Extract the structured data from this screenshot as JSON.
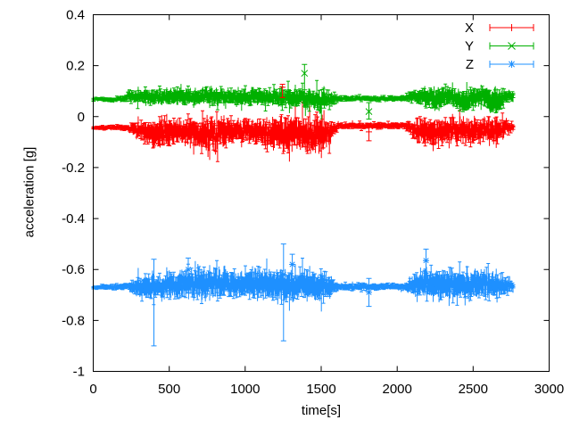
{
  "window": {
    "background": "#ffffff"
  },
  "chart_data": {
    "type": "scatter",
    "style": "points-with-yerrorbars",
    "title": "",
    "xlabel": "time[s]",
    "ylabel": "acceleration [g]",
    "xlim": [
      0,
      3000
    ],
    "ylim": [
      -1,
      0.4
    ],
    "xticks": [
      0,
      500,
      1000,
      1500,
      2000,
      2500,
      3000
    ],
    "xtick_labels": [
      "0",
      "500",
      "1000",
      "1500",
      "2000",
      "2500",
      "3000"
    ],
    "yticks": [
      -1,
      -0.8,
      -0.6,
      -0.4,
      -0.2,
      0,
      0.2,
      0.4
    ],
    "ytick_labels": [
      "-1",
      "-0.8",
      "-0.6",
      "-0.4",
      "-0.2",
      "0",
      "0.2",
      "0.4"
    ],
    "grid": false,
    "frame_color": "#000000",
    "text_color": "#000000",
    "legend": {
      "position": "top-right-inside",
      "entries": [
        "X",
        "Y",
        "Z"
      ]
    },
    "t_end": 2765,
    "series": [
      {
        "name": "X",
        "color": "#ff0000",
        "marker": "plus",
        "envelope": [
          [
            0,
            -0.043,
            0.009
          ],
          [
            140,
            -0.043,
            0.011
          ],
          [
            230,
            -0.045,
            0.012
          ],
          [
            280,
            -0.05,
            0.03
          ],
          [
            350,
            -0.06,
            0.05
          ],
          [
            450,
            -0.065,
            0.062
          ],
          [
            550,
            -0.055,
            0.05
          ],
          [
            650,
            -0.06,
            0.058
          ],
          [
            750,
            -0.07,
            0.075
          ],
          [
            850,
            -0.065,
            0.06
          ],
          [
            950,
            -0.055,
            0.048
          ],
          [
            1050,
            -0.06,
            0.055
          ],
          [
            1150,
            -0.065,
            0.06
          ],
          [
            1250,
            -0.075,
            0.085
          ],
          [
            1350,
            -0.065,
            0.07
          ],
          [
            1420,
            -0.07,
            0.075
          ],
          [
            1500,
            -0.075,
            0.08
          ],
          [
            1560,
            -0.055,
            0.045
          ],
          [
            1615,
            -0.036,
            0.013
          ],
          [
            2045,
            -0.036,
            0.013
          ],
          [
            2095,
            -0.045,
            0.03
          ],
          [
            2150,
            -0.06,
            0.055
          ],
          [
            2250,
            -0.065,
            0.06
          ],
          [
            2350,
            -0.055,
            0.05
          ],
          [
            2450,
            -0.06,
            0.058
          ],
          [
            2550,
            -0.05,
            0.05
          ],
          [
            2650,
            -0.055,
            0.055
          ],
          [
            2720,
            -0.045,
            0.035
          ],
          [
            2765,
            -0.04,
            0.016
          ]
        ]
      },
      {
        "name": "Y",
        "color": "#00b000",
        "marker": "cross",
        "envelope": [
          [
            0,
            0.068,
            0.008
          ],
          [
            140,
            0.068,
            0.01
          ],
          [
            195,
            0.07,
            0.012
          ],
          [
            230,
            0.08,
            0.025
          ],
          [
            350,
            0.08,
            0.032
          ],
          [
            450,
            0.075,
            0.03
          ],
          [
            550,
            0.08,
            0.035
          ],
          [
            650,
            0.075,
            0.032
          ],
          [
            750,
            0.08,
            0.038
          ],
          [
            850,
            0.078,
            0.034
          ],
          [
            950,
            0.075,
            0.032
          ],
          [
            1050,
            0.08,
            0.036
          ],
          [
            1150,
            0.075,
            0.034
          ],
          [
            1250,
            0.07,
            0.04
          ],
          [
            1350,
            0.075,
            0.038
          ],
          [
            1420,
            0.065,
            0.045
          ],
          [
            1500,
            0.06,
            0.05
          ],
          [
            1560,
            0.07,
            0.035
          ],
          [
            1615,
            0.071,
            0.011
          ],
          [
            2045,
            0.071,
            0.011
          ],
          [
            2095,
            0.078,
            0.025
          ],
          [
            2150,
            0.08,
            0.035
          ],
          [
            2250,
            0.065,
            0.05
          ],
          [
            2350,
            0.08,
            0.038
          ],
          [
            2450,
            0.062,
            0.052
          ],
          [
            2550,
            0.08,
            0.04
          ],
          [
            2640,
            0.055,
            0.055
          ],
          [
            2720,
            0.08,
            0.035
          ],
          [
            2765,
            0.078,
            0.018
          ]
        ]
      },
      {
        "name": "Z",
        "color": "#1e90ff",
        "marker": "star",
        "envelope": [
          [
            0,
            -0.669,
            0.01
          ],
          [
            140,
            -0.669,
            0.012
          ],
          [
            230,
            -0.668,
            0.014
          ],
          [
            280,
            -0.667,
            0.04
          ],
          [
            350,
            -0.67,
            0.055
          ],
          [
            450,
            -0.665,
            0.05
          ],
          [
            550,
            -0.66,
            0.055
          ],
          [
            650,
            -0.655,
            0.06
          ],
          [
            750,
            -0.65,
            0.068
          ],
          [
            850,
            -0.655,
            0.06
          ],
          [
            950,
            -0.66,
            0.055
          ],
          [
            1050,
            -0.655,
            0.06
          ],
          [
            1150,
            -0.66,
            0.065
          ],
          [
            1250,
            -0.665,
            0.075
          ],
          [
            1350,
            -0.665,
            0.068
          ],
          [
            1420,
            -0.66,
            0.06
          ],
          [
            1500,
            -0.665,
            0.068
          ],
          [
            1560,
            -0.668,
            0.045
          ],
          [
            1615,
            -0.668,
            0.014
          ],
          [
            2045,
            -0.668,
            0.014
          ],
          [
            2095,
            -0.662,
            0.04
          ],
          [
            2150,
            -0.658,
            0.06
          ],
          [
            2250,
            -0.655,
            0.065
          ],
          [
            2350,
            -0.66,
            0.068
          ],
          [
            2450,
            -0.662,
            0.058
          ],
          [
            2550,
            -0.655,
            0.062
          ],
          [
            2650,
            -0.66,
            0.055
          ],
          [
            2720,
            -0.665,
            0.04
          ],
          [
            2765,
            -0.668,
            0.016
          ]
        ]
      }
    ],
    "outliers": [
      {
        "series": "Y",
        "t": 1390,
        "value": 0.17,
        "err_up": 0.035,
        "err_down": 0.065
      },
      {
        "series": "Y",
        "t": 1814,
        "value": 0.02,
        "err_up": 0.035,
        "err_down": 0.03
      },
      {
        "series": "X",
        "t": 1245,
        "value": 0.115,
        "err_up": 0.012,
        "err_down": 0.04
      },
      {
        "series": "X",
        "t": 1814,
        "value": -0.06,
        "err_up": 0.03,
        "err_down": 0.035
      },
      {
        "series": "Z",
        "t": 399,
        "value": -0.68,
        "err_up": 0.12,
        "err_down": 0.22
      },
      {
        "series": "Z",
        "t": 625,
        "value": -0.6,
        "err_up": 0.045,
        "err_down": 0.05
      },
      {
        "series": "Z",
        "t": 1252,
        "value": -0.62,
        "err_up": 0.12,
        "err_down": 0.26
      },
      {
        "series": "Z",
        "t": 1310,
        "value": -0.58,
        "err_up": 0.04,
        "err_down": 0.07
      },
      {
        "series": "Z",
        "t": 1814,
        "value": -0.69,
        "err_up": 0.055,
        "err_down": 0.055
      },
      {
        "series": "Z",
        "t": 2190,
        "value": -0.565,
        "err_up": 0.045,
        "err_down": 0.05
      }
    ]
  }
}
